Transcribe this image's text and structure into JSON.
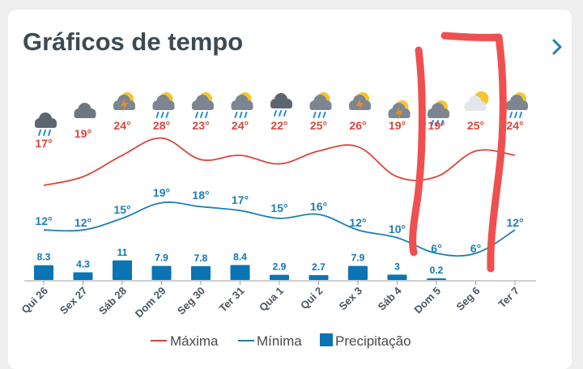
{
  "header": {
    "title": "Gráficos de tempo",
    "next_icon": "chevron-right-icon"
  },
  "colors": {
    "max": "#d9463d",
    "min": "#1e7fb0",
    "precip": "#0a74b4",
    "annotation": "#ee5050",
    "title": "#3d4a54"
  },
  "chart_data": {
    "type": "line",
    "categories": [
      "Qui 26",
      "Sex 27",
      "Sáb 28",
      "Dom 29",
      "Seg 30",
      "Ter 31",
      "Qua 1",
      "Qui 2",
      "Sex 3",
      "Sáb 4",
      "Dom 5",
      "Seg 6",
      "Ter 7"
    ],
    "icons": [
      "rain-cloud-icon",
      "cloud-icon",
      "sun-thunder-icon",
      "sun-rain-icon",
      "sun-rain-icon",
      "sun-rain-icon",
      "rain-cloud-icon",
      "sun-rain-icon",
      "sun-thunder-icon",
      "sun-thunder-icon",
      "sun-rain-icon",
      "sun-cloud-icon",
      "sun-rain-icon"
    ],
    "series": [
      {
        "name": "Máxima",
        "values": [
          17,
          19,
          24,
          28,
          23,
          24,
          22,
          25,
          26,
          19,
          19,
          25,
          24
        ],
        "labels": [
          "17°",
          "19°",
          "24°",
          "28°",
          "23°",
          "24°",
          "22°",
          "25°",
          "26°",
          "19°",
          "19°",
          "25°",
          "24°"
        ]
      },
      {
        "name": "Mínima",
        "values": [
          12,
          12,
          15,
          19,
          18,
          17,
          15,
          16,
          12,
          10,
          6,
          6,
          12
        ],
        "labels": [
          "12°",
          "12°",
          "15°",
          "19°",
          "18°",
          "17°",
          "15°",
          "16°",
          "12°",
          "10°",
          "6°",
          "6°",
          "12°"
        ]
      },
      {
        "name": "Precipitação",
        "values": [
          8.3,
          4.3,
          11,
          7.9,
          7.8,
          8.4,
          2.9,
          2.7,
          7.9,
          3,
          0.2,
          0,
          0
        ],
        "labels": [
          "8.3",
          "4.3",
          "11",
          "7.9",
          "7.8",
          "8.4",
          "2.9",
          "2.7",
          "7.9",
          "3",
          "0.2",
          "",
          ""
        ]
      }
    ],
    "legend": {
      "placement": "bottom",
      "items": [
        "Máxima",
        "Mínima",
        "Precipitação"
      ]
    }
  }
}
